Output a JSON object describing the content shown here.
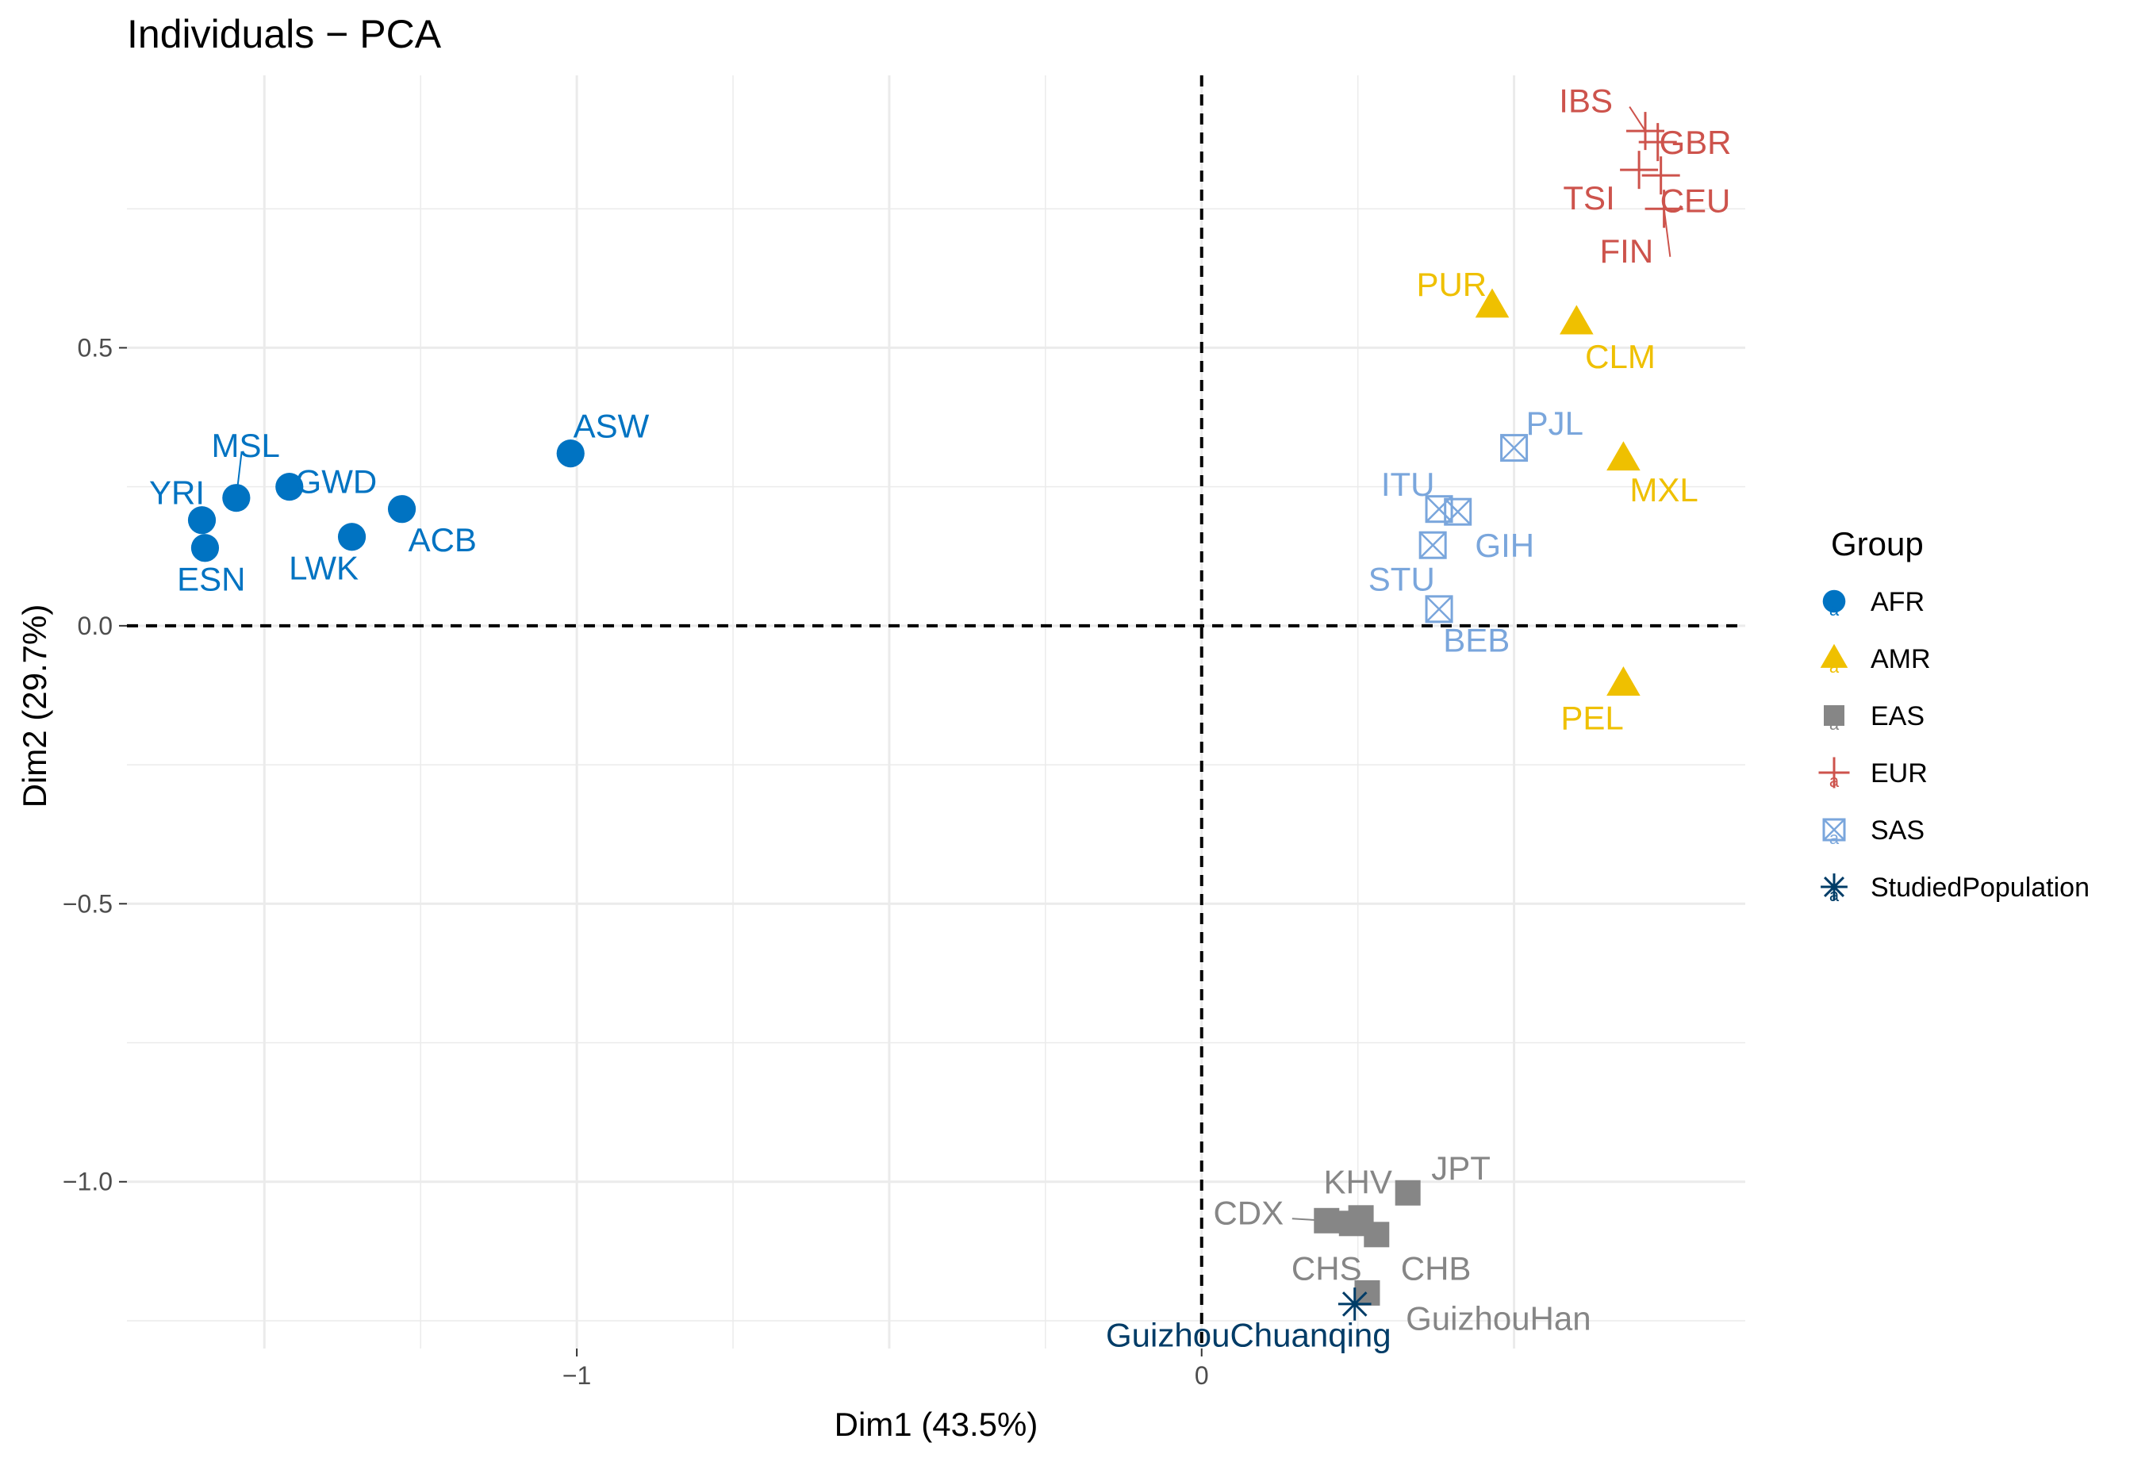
{
  "chart_data": {
    "type": "scatter",
    "title": "Individuals − PCA",
    "xlabel": "Dim1 (43.5%)",
    "ylabel": "Dim2 (29.7%)",
    "xlim": [
      -1.72,
      0.87
    ],
    "ylim": [
      -1.3,
      0.99
    ],
    "x_ticks": [
      {
        "value": -1,
        "label": "−1"
      },
      {
        "value": 0,
        "label": "0"
      }
    ],
    "y_ticks": [
      {
        "value": 0.5,
        "label": "0.5"
      },
      {
        "value": 0.0,
        "label": "0.0"
      },
      {
        "value": -0.5,
        "label": "−0.5"
      },
      {
        "value": -1.0,
        "label": "−1.0"
      }
    ],
    "grid": true,
    "reference_lines": {
      "x": 0,
      "y": 0,
      "style": "dashed"
    },
    "legend": {
      "title": "Group",
      "placement": "right"
    },
    "groups": [
      {
        "name": "AFR",
        "color": "#0073C2",
        "marker": "circle"
      },
      {
        "name": "AMR",
        "color": "#EFC000",
        "marker": "triangle"
      },
      {
        "name": "EAS",
        "color": "#868686",
        "marker": "square"
      },
      {
        "name": "EUR",
        "color": "#CD534C",
        "marker": "cross"
      },
      {
        "name": "SAS",
        "color": "#7AA6DC",
        "marker": "boxed-x"
      },
      {
        "name": "StudiedPopulation",
        "color": "#003C67",
        "marker": "asterisk"
      }
    ],
    "points": [
      {
        "label": "ASW",
        "group": "AFR",
        "x": -1.01,
        "y": 0.31,
        "lx": -0.945,
        "ly": 0.36
      },
      {
        "label": "GWD",
        "group": "AFR",
        "x": -1.46,
        "y": 0.25,
        "lx": -1.385,
        "ly": 0.26
      },
      {
        "label": "ACB",
        "group": "AFR",
        "x": -1.28,
        "y": 0.21,
        "lx": -1.215,
        "ly": 0.155
      },
      {
        "label": "LWK",
        "group": "AFR",
        "x": -1.36,
        "y": 0.16,
        "lx": -1.405,
        "ly": 0.105
      },
      {
        "label": "MSL",
        "group": "AFR",
        "x": -1.545,
        "y": 0.23,
        "lx": -1.53,
        "ly": 0.325,
        "leader": true
      },
      {
        "label": "YRI",
        "group": "AFR",
        "x": -1.6,
        "y": 0.19,
        "lx": -1.64,
        "ly": 0.24
      },
      {
        "label": "ESN",
        "group": "AFR",
        "x": -1.595,
        "y": 0.14,
        "lx": -1.585,
        "ly": 0.085
      },
      {
        "label": "PUR",
        "group": "AMR",
        "x": 0.465,
        "y": 0.575,
        "lx": 0.4,
        "ly": 0.615
      },
      {
        "label": "CLM",
        "group": "AMR",
        "x": 0.6,
        "y": 0.545,
        "lx": 0.67,
        "ly": 0.485
      },
      {
        "label": "MXL",
        "group": "AMR",
        "x": 0.675,
        "y": 0.3,
        "lx": 0.74,
        "ly": 0.245
      },
      {
        "label": "PEL",
        "group": "AMR",
        "x": 0.675,
        "y": -0.105,
        "lx": 0.625,
        "ly": -0.165
      },
      {
        "label": "JPT",
        "group": "EAS",
        "x": 0.33,
        "y": -1.02,
        "lx": 0.415,
        "ly": -0.975
      },
      {
        "label": "KHV",
        "group": "EAS",
        "x": 0.255,
        "y": -1.065,
        "lx": 0.25,
        "ly": -1.0
      },
      {
        "label": "CDX",
        "group": "EAS",
        "x": 0.2,
        "y": -1.07,
        "lx": 0.075,
        "ly": -1.055,
        "leader": true
      },
      {
        "label": "CHS",
        "group": "EAS",
        "x": 0.24,
        "y": -1.075,
        "lx": 0.2,
        "ly": -1.155
      },
      {
        "label": "CHB",
        "group": "EAS",
        "x": 0.28,
        "y": -1.095,
        "lx": 0.375,
        "ly": -1.155
      },
      {
        "label": "GuizhouHan",
        "group": "EAS",
        "x": 0.265,
        "y": -1.2,
        "lx": 0.475,
        "ly": -1.245
      },
      {
        "label": "IBS",
        "group": "EUR",
        "x": 0.71,
        "y": 0.89,
        "lx": 0.615,
        "ly": 0.945,
        "leader": true
      },
      {
        "label": "GBR",
        "group": "EUR",
        "x": 0.73,
        "y": 0.87,
        "lx": 0.79,
        "ly": 0.87
      },
      {
        "label": "TSI",
        "group": "EUR",
        "x": 0.7,
        "y": 0.82,
        "lx": 0.62,
        "ly": 0.77
      },
      {
        "label": "CEU",
        "group": "EUR",
        "x": 0.735,
        "y": 0.81,
        "lx": 0.79,
        "ly": 0.765
      },
      {
        "label": "FIN",
        "group": "EUR",
        "x": 0.74,
        "y": 0.75,
        "lx": 0.68,
        "ly": 0.675,
        "leader": true
      },
      {
        "label": "PJL",
        "group": "SAS",
        "x": 0.5,
        "y": 0.32,
        "lx": 0.565,
        "ly": 0.365
      },
      {
        "label": "ITU",
        "group": "SAS",
        "x": 0.38,
        "y": 0.21,
        "lx": 0.33,
        "ly": 0.255
      },
      {
        "label": "GIH",
        "group": "SAS",
        "x": 0.41,
        "y": 0.205,
        "lx": 0.485,
        "ly": 0.145
      },
      {
        "label": "STU",
        "group": "SAS",
        "x": 0.37,
        "y": 0.145,
        "lx": 0.32,
        "ly": 0.085
      },
      {
        "label": "BEB",
        "group": "SAS",
        "x": 0.38,
        "y": 0.03,
        "lx": 0.44,
        "ly": -0.025
      },
      {
        "label": "GuizhouChuanqing",
        "group": "StudiedPopulation",
        "x": 0.245,
        "y": -1.22,
        "lx": 0.075,
        "ly": -1.275
      }
    ]
  }
}
